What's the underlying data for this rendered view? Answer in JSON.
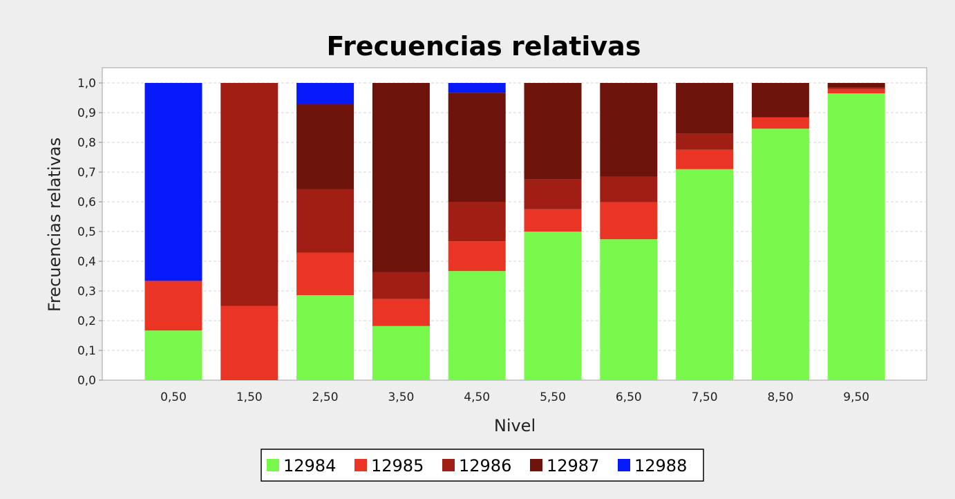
{
  "chart_data": {
    "type": "bar",
    "stacked": true,
    "title": "Frecuencias relativas",
    "xlabel": "Nivel",
    "ylabel": "Frecuencias relativas",
    "ylim": [
      0,
      1.0
    ],
    "yticks": [
      "0,0",
      "0,1",
      "0,2",
      "0,3",
      "0,4",
      "0,5",
      "0,6",
      "0,7",
      "0,8",
      "0,9",
      "1,0"
    ],
    "grid": true,
    "legend_position": "bottom",
    "categories": [
      "0,50",
      "1,50",
      "2,50",
      "3,50",
      "4,50",
      "5,50",
      "6,50",
      "7,50",
      "8,50",
      "9,50"
    ],
    "series": [
      {
        "name": "12984",
        "color": "#77f84a",
        "values": [
          0.167,
          0.0,
          0.286,
          0.182,
          0.367,
          0.5,
          0.474,
          0.71,
          0.846,
          0.965
        ]
      },
      {
        "name": "12985",
        "color": "#ea3524",
        "values": [
          0.167,
          0.25,
          0.143,
          0.091,
          0.1,
          0.075,
          0.125,
          0.065,
          0.038,
          0.015
        ]
      },
      {
        "name": "12986",
        "color": "#a01e13",
        "values": [
          0.0,
          0.75,
          0.214,
          0.091,
          0.133,
          0.1,
          0.085,
          0.055,
          0.0,
          0.005
        ]
      },
      {
        "name": "12987",
        "color": "#6e130b",
        "values": [
          0.0,
          0.0,
          0.286,
          0.636,
          0.367,
          0.325,
          0.316,
          0.17,
          0.116,
          0.015
        ]
      },
      {
        "name": "12988",
        "color": "#0619f9",
        "values": [
          0.666,
          0.0,
          0.071,
          0.0,
          0.033,
          0.0,
          0.0,
          0.0,
          0.0,
          0.0
        ]
      }
    ]
  }
}
